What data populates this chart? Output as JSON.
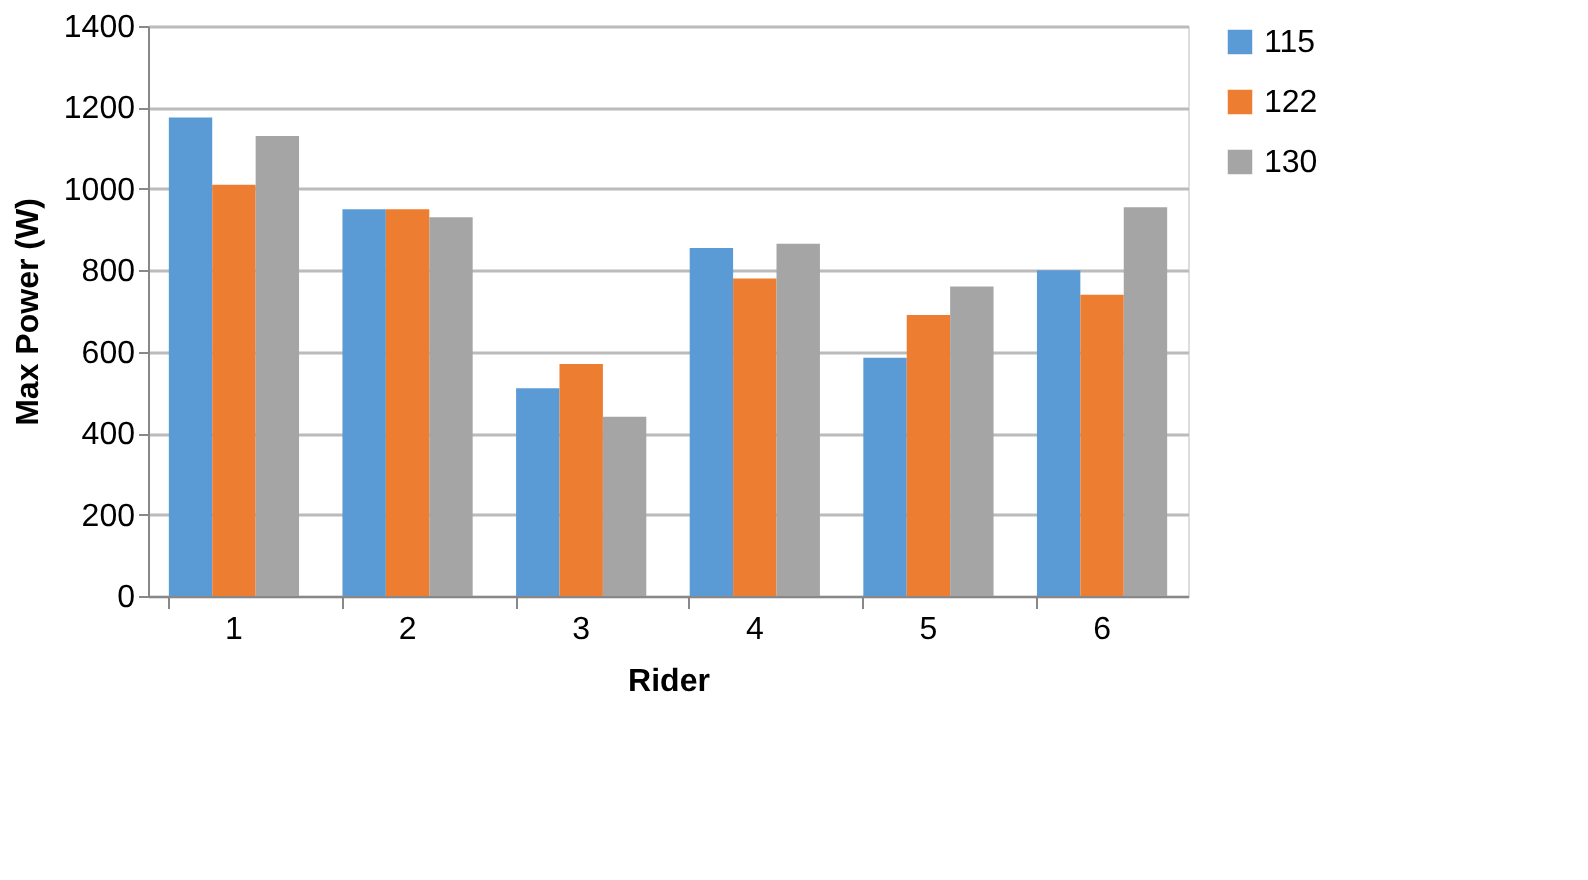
{
  "chart_data": {
    "type": "bar",
    "xlabel": "Rider",
    "ylabel": "Max Power (W)",
    "categories": [
      "1",
      "2",
      "3",
      "4",
      "5",
      "6"
    ],
    "series": [
      {
        "name": "115",
        "color": "#5b9bd5",
        "values": [
          1175,
          950,
          510,
          855,
          585,
          800
        ]
      },
      {
        "name": "122",
        "color": "#ed7d31",
        "values": [
          1010,
          950,
          570,
          780,
          690,
          740
        ]
      },
      {
        "name": "130",
        "color": "#a5a5a5",
        "values": [
          1130,
          930,
          440,
          865,
          760,
          955
        ]
      }
    ],
    "ylim": [
      0,
      1400
    ],
    "yticks": [
      0,
      200,
      400,
      600,
      800,
      1000,
      1200,
      1400
    ],
    "grid": "y",
    "legend": "right"
  }
}
